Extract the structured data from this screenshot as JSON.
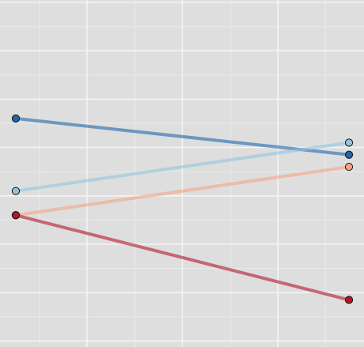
{
  "chart_data": {
    "type": "line",
    "title": "",
    "xlabel": "",
    "ylabel": "",
    "x": [
      1,
      2
    ],
    "xlim": [
      1,
      2
    ],
    "ylim": [
      0,
      14
    ],
    "grid": true,
    "legend": "none",
    "series": [
      {
        "color": "#2166ac",
        "values": [
          9.2,
          7.7
        ]
      },
      {
        "color": "#92c5de",
        "values": [
          6.2,
          8.2
        ]
      },
      {
        "color": "#f4a582",
        "values": [
          5.2,
          7.2
        ]
      },
      {
        "color": "#b2182b",
        "values": [
          5.2,
          1.7
        ]
      }
    ]
  },
  "colors": {
    "panel_background": "#dedede",
    "grid_major": "#f4f4f4",
    "grid_minor": "#e9e9e9"
  }
}
